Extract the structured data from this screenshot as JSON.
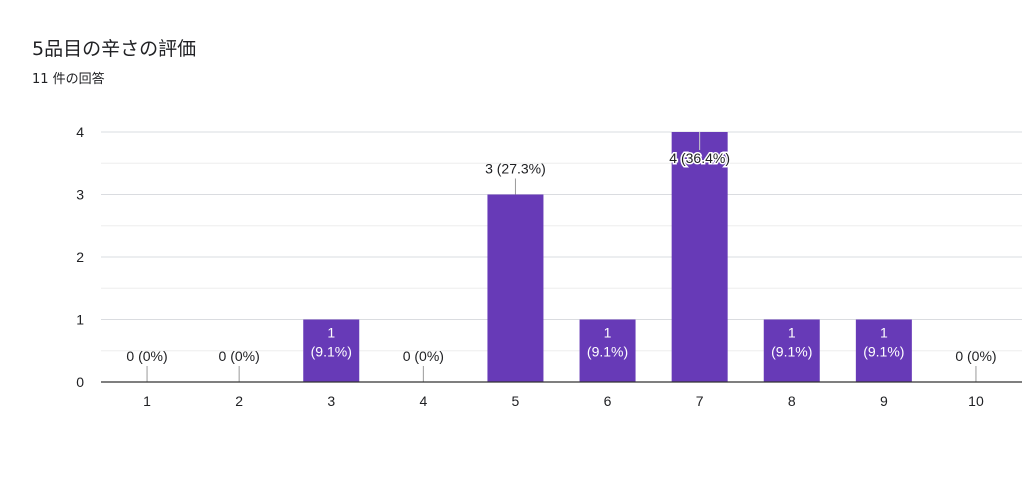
{
  "header": {
    "title": "5品目の辛さの評価",
    "subtitle": "11 件の回答"
  },
  "colors": {
    "bar": "#673ab7",
    "grid": "#e6e6e6",
    "axis": "#333333",
    "text": "#202124",
    "label_inside": "#ffffff"
  },
  "chart_data": {
    "type": "bar",
    "title": "5品目の辛さの評価",
    "categories": [
      "1",
      "2",
      "3",
      "4",
      "5",
      "6",
      "7",
      "8",
      "9",
      "10"
    ],
    "values": [
      0,
      0,
      1,
      0,
      3,
      1,
      4,
      1,
      1,
      0
    ],
    "data_labels": [
      "0 (0%)",
      "0 (0%)",
      "1\n(9.1%)",
      "0 (0%)",
      "3 (27.3%)",
      "1\n(9.1%)",
      "4 (36.4%)",
      "1\n(9.1%)",
      "1\n(9.1%)",
      "0 (0%)"
    ],
    "yticks": [
      "0",
      "1",
      "2",
      "3",
      "4"
    ],
    "ylim": [
      0,
      4
    ],
    "grid": true,
    "legend": "none"
  }
}
